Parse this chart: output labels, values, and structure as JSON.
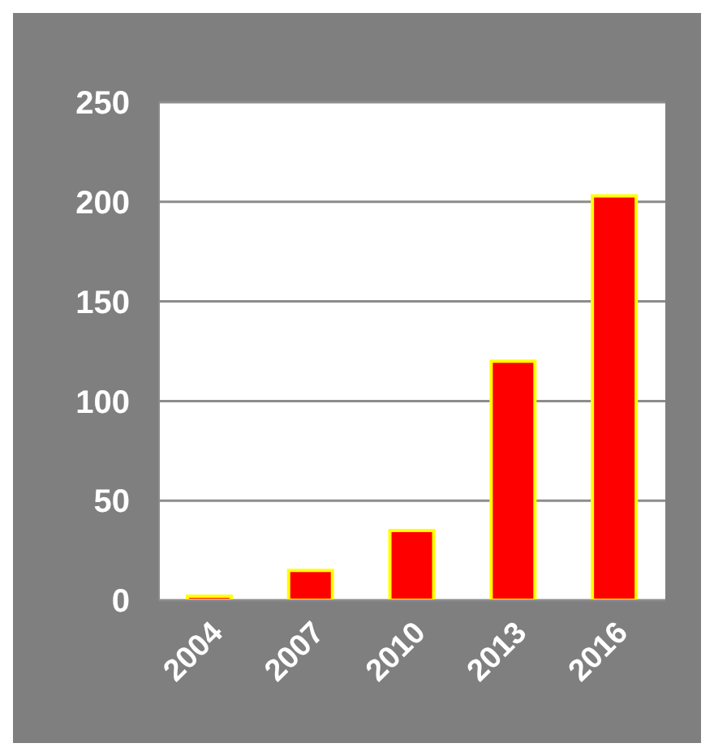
{
  "chart_data": {
    "type": "bar",
    "categories": [
      "2004",
      "2007",
      "2010",
      "2013",
      "2016"
    ],
    "values": [
      2,
      15,
      35,
      120,
      203
    ],
    "color": "#ff0000",
    "ylim": [
      0,
      250
    ],
    "yticks": [
      0,
      50,
      100,
      150,
      200,
      250
    ],
    "grid": "y"
  }
}
